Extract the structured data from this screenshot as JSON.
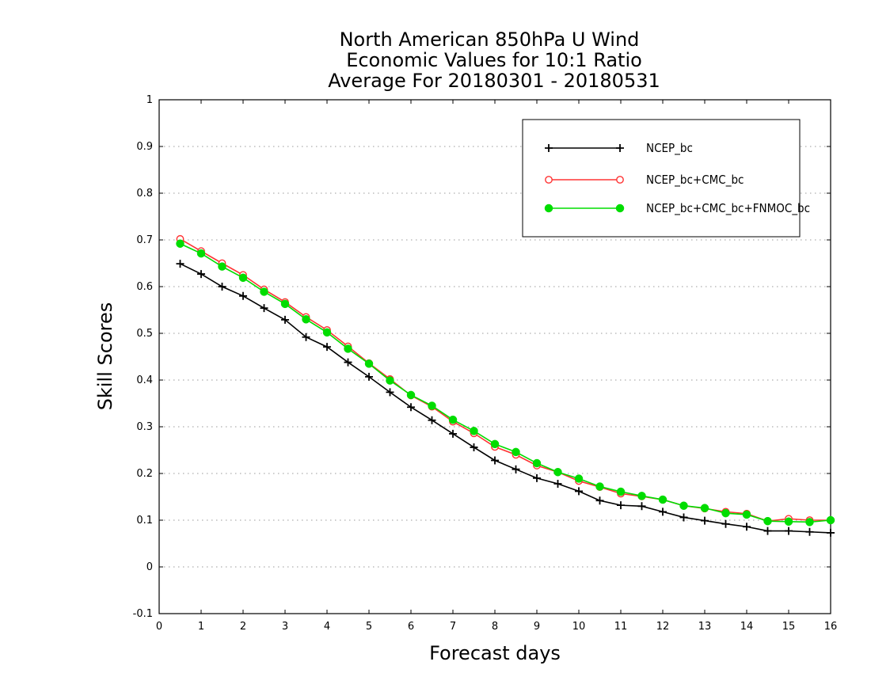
{
  "chart_data": {
    "type": "line",
    "title_lines": [
      "North American 850hPa U Wind",
      "Economic Values for 10:1 Ratio",
      "Average For 20180301 - 20180531"
    ],
    "xlabel": "Forecast days",
    "ylabel": "Skill Scores",
    "xlim": [
      0,
      16
    ],
    "ylim": [
      -0.1,
      1
    ],
    "xticks": [
      0,
      1,
      2,
      3,
      4,
      5,
      6,
      7,
      8,
      9,
      10,
      11,
      12,
      13,
      14,
      15,
      16
    ],
    "yticks": [
      -0.1,
      0,
      0.1,
      0.2,
      0.3,
      0.4,
      0.5,
      0.6,
      0.7,
      0.8,
      0.9,
      1
    ],
    "ytick_labels": [
      "-0.1",
      "0",
      "0.1",
      "0.2",
      "0.3",
      "0.4",
      "0.5",
      "0.6",
      "0.7",
      "0.8",
      "0.9",
      "1"
    ],
    "grid": "horizontal dotted",
    "legend_position": "top-right",
    "x": [
      0.5,
      1,
      1.5,
      2,
      2.5,
      3,
      3.5,
      4,
      4.5,
      5,
      5.5,
      6,
      6.5,
      7,
      7.5,
      8,
      8.5,
      9,
      9.5,
      10,
      10.5,
      11,
      11.5,
      12,
      12.5,
      13,
      13.5,
      14,
      14.5,
      15,
      15.5,
      16
    ],
    "series": [
      {
        "name": "NCEP_bc",
        "color": "#000000",
        "marker": "plus",
        "values": [
          0.649,
          0.627,
          0.6,
          0.58,
          0.554,
          0.529,
          0.492,
          0.471,
          0.438,
          0.407,
          0.374,
          0.342,
          0.314,
          0.285,
          0.256,
          0.228,
          0.209,
          0.19,
          0.178,
          0.162,
          0.142,
          0.132,
          0.13,
          0.118,
          0.106,
          0.099,
          0.092,
          0.086,
          0.077,
          0.077,
          0.075,
          0.073
        ]
      },
      {
        "name": "NCEP_bc+CMC_bc",
        "color": "#ff3333",
        "marker": "open-circle",
        "values": [
          0.702,
          0.676,
          0.65,
          0.625,
          0.594,
          0.567,
          0.535,
          0.507,
          0.472,
          0.436,
          0.402,
          0.367,
          0.343,
          0.311,
          0.286,
          0.257,
          0.24,
          0.217,
          0.203,
          0.184,
          0.171,
          0.157,
          0.151,
          0.144,
          0.131,
          0.125,
          0.118,
          0.114,
          0.098,
          0.103,
          0.1,
          0.1
        ]
      },
      {
        "name": "NCEP_bc+CMC_bc+FNMOC_bc",
        "color": "#00dd00",
        "marker": "filled-circle",
        "values": [
          0.692,
          0.671,
          0.643,
          0.619,
          0.589,
          0.563,
          0.53,
          0.502,
          0.467,
          0.435,
          0.399,
          0.368,
          0.345,
          0.315,
          0.291,
          0.263,
          0.246,
          0.222,
          0.203,
          0.189,
          0.172,
          0.161,
          0.152,
          0.144,
          0.131,
          0.126,
          0.115,
          0.112,
          0.098,
          0.097,
          0.096,
          0.1
        ]
      }
    ]
  }
}
